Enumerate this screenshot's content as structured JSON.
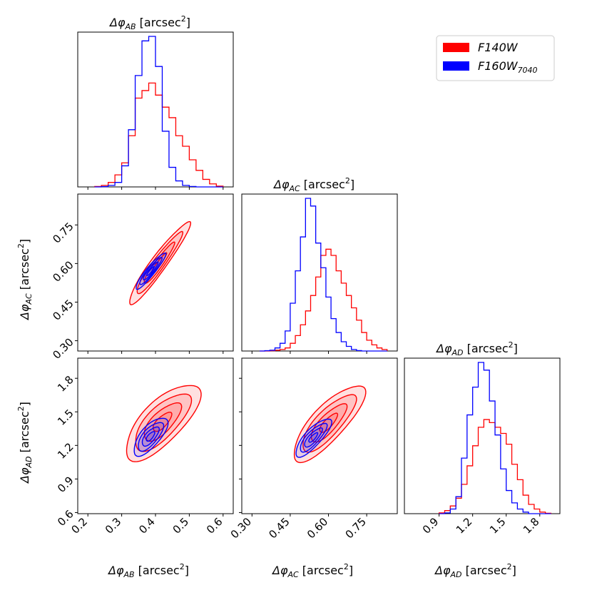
{
  "chart_data": {
    "type": "corner",
    "legend": {
      "position": "top-right",
      "entries": [
        {
          "label": "F140W",
          "color": "#ff0000"
        },
        {
          "label": "F160W",
          "sub": "7040",
          "color": "#0000ff"
        }
      ]
    },
    "unit": "[arcsec",
    "parameters": [
      {
        "symbol": "Δφ",
        "sub": "AB",
        "range": [
          0.17,
          0.63
        ],
        "ticks": [
          0.2,
          0.3,
          0.4,
          0.5,
          0.6
        ],
        "tick_labels": [
          "0.2",
          "0.3",
          "0.4",
          "0.5",
          "0.6"
        ]
      },
      {
        "symbol": "Δφ",
        "sub": "AC",
        "range": [
          0.26,
          0.87
        ],
        "ticks": [
          0.3,
          0.45,
          0.6,
          0.75
        ],
        "tick_labels": [
          "0.30",
          "0.45",
          "0.60",
          "0.75"
        ]
      },
      {
        "symbol": "Δφ",
        "sub": "AD",
        "range": [
          0.59,
          1.98
        ],
        "ticks": [
          0.9,
          1.2,
          1.5,
          1.8
        ],
        "tick_labels": [
          "0.9",
          "1.2",
          "1.5",
          "1.8"
        ],
        "ytick_labels": [
          "0.6",
          "0.9",
          "1.2",
          "1.5",
          "1.8"
        ],
        "yticks": [
          0.6,
          0.9,
          1.2,
          1.5,
          1.8
        ]
      }
    ],
    "histograms": [
      {
        "param": "AB",
        "bin_edges": [
          0.22,
          0.24,
          0.26,
          0.28,
          0.3,
          0.32,
          0.34,
          0.36,
          0.38,
          0.4,
          0.42,
          0.44,
          0.46,
          0.48,
          0.5,
          0.52,
          0.54,
          0.56,
          0.58,
          0.6
        ],
        "series": [
          {
            "name": "F140W",
            "color": "#ff0000",
            "counts": [
              0.003,
              0.01,
              0.03,
              0.08,
              0.16,
              0.34,
              0.59,
              0.64,
              0.69,
              0.61,
              0.53,
              0.46,
              0.34,
              0.27,
              0.18,
              0.11,
              0.05,
              0.02,
              0.005
            ]
          },
          {
            "name": "F160W_7040",
            "color": "#0000ff",
            "counts": [
              0.0,
              0.002,
              0.01,
              0.03,
              0.14,
              0.38,
              0.74,
              0.97,
              1.0,
              0.8,
              0.37,
              0.13,
              0.04,
              0.01,
              0.003,
              0.0,
              0.0,
              0.0,
              0.0
            ]
          }
        ]
      },
      {
        "param": "AC",
        "bin_edges": [
          0.33,
          0.35,
          0.37,
          0.39,
          0.41,
          0.43,
          0.45,
          0.47,
          0.49,
          0.51,
          0.53,
          0.55,
          0.57,
          0.59,
          0.61,
          0.63,
          0.65,
          0.67,
          0.69,
          0.71,
          0.73,
          0.75,
          0.77,
          0.79,
          0.81,
          0.83
        ],
        "series": [
          {
            "name": "F140W",
            "color": "#ff0000",
            "counts": [
              0.0,
              0.0,
              0.002,
              0.005,
              0.01,
              0.02,
              0.05,
              0.1,
              0.17,
              0.26,
              0.36,
              0.48,
              0.62,
              0.66,
              0.62,
              0.52,
              0.44,
              0.36,
              0.28,
              0.2,
              0.12,
              0.07,
              0.04,
              0.02,
              0.01
            ]
          },
          {
            "name": "F160W_7040",
            "color": "#0000ff",
            "counts": [
              0.0,
              0.002,
              0.005,
              0.02,
              0.05,
              0.13,
              0.31,
              0.52,
              0.74,
              0.99,
              0.94,
              0.7,
              0.54,
              0.35,
              0.21,
              0.12,
              0.06,
              0.03,
              0.01,
              0.003,
              0.0,
              0.0,
              0.0,
              0.0,
              0.0
            ]
          }
        ]
      },
      {
        "param": "AD",
        "bin_edges": [
          0.9,
          0.95,
          1.0,
          1.05,
          1.1,
          1.15,
          1.2,
          1.25,
          1.3,
          1.35,
          1.4,
          1.45,
          1.5,
          1.55,
          1.6,
          1.65,
          1.7,
          1.75,
          1.8,
          1.85,
          1.9
        ],
        "series": [
          {
            "name": "F140W",
            "color": "#ff0000",
            "counts": [
              0.005,
              0.02,
              0.05,
              0.1,
              0.19,
              0.31,
              0.44,
              0.56,
              0.61,
              0.59,
              0.56,
              0.52,
              0.45,
              0.32,
              0.22,
              0.12,
              0.06,
              0.03,
              0.01,
              0.003
            ]
          },
          {
            "name": "F160W_7040",
            "color": "#0000ff",
            "counts": [
              0.0,
              0.005,
              0.03,
              0.11,
              0.36,
              0.64,
              0.82,
              0.98,
              0.93,
              0.73,
              0.51,
              0.29,
              0.15,
              0.07,
              0.03,
              0.01,
              0.0,
              0.0,
              0.0,
              0.0
            ]
          }
        ]
      }
    ],
    "contours": [
      {
        "x": "AB",
        "y": "AC",
        "series": [
          {
            "name": "F140W",
            "color": "#ff0000",
            "center": [
              0.41,
              0.6
            ],
            "spread": [
              0.045,
              0.08
            ],
            "corr": 0.95,
            "levels": [
              0.5,
              1.0,
              1.5,
              2.0
            ]
          },
          {
            "name": "F160W_7040",
            "color": "#0000ff",
            "center": [
              0.385,
              0.57
            ],
            "spread": [
              0.022,
              0.035
            ],
            "corr": 0.93,
            "levels": [
              0.5,
              1.0,
              1.5,
              2.0
            ]
          }
        ]
      },
      {
        "x": "AB",
        "y": "AD",
        "series": [
          {
            "name": "F140W",
            "color": "#ff0000",
            "center": [
              0.42,
              1.41
            ],
            "spread": [
              0.055,
              0.17
            ],
            "corr": 0.72,
            "levels": [
              0.5,
              1.0,
              1.5,
              2.0
            ]
          },
          {
            "name": "F160W_7040",
            "color": "#0000ff",
            "center": [
              0.385,
              1.28
            ],
            "spread": [
              0.025,
              0.085
            ],
            "corr": 0.7,
            "levels": [
              0.5,
              1.0,
              1.5,
              2.0
            ]
          }
        ]
      },
      {
        "x": "AC",
        "y": "AD",
        "series": [
          {
            "name": "F140W",
            "color": "#ff0000",
            "center": [
              0.6,
              1.4
            ],
            "spread": [
              0.07,
              0.17
            ],
            "corr": 0.8,
            "levels": [
              0.5,
              1.0,
              1.5,
              2.0
            ]
          },
          {
            "name": "F160W_7040",
            "color": "#0000ff",
            "center": [
              0.54,
              1.27
            ],
            "spread": [
              0.035,
              0.085
            ],
            "corr": 0.8,
            "levels": [
              0.5,
              1.0,
              1.5,
              2.0
            ]
          }
        ]
      }
    ]
  }
}
